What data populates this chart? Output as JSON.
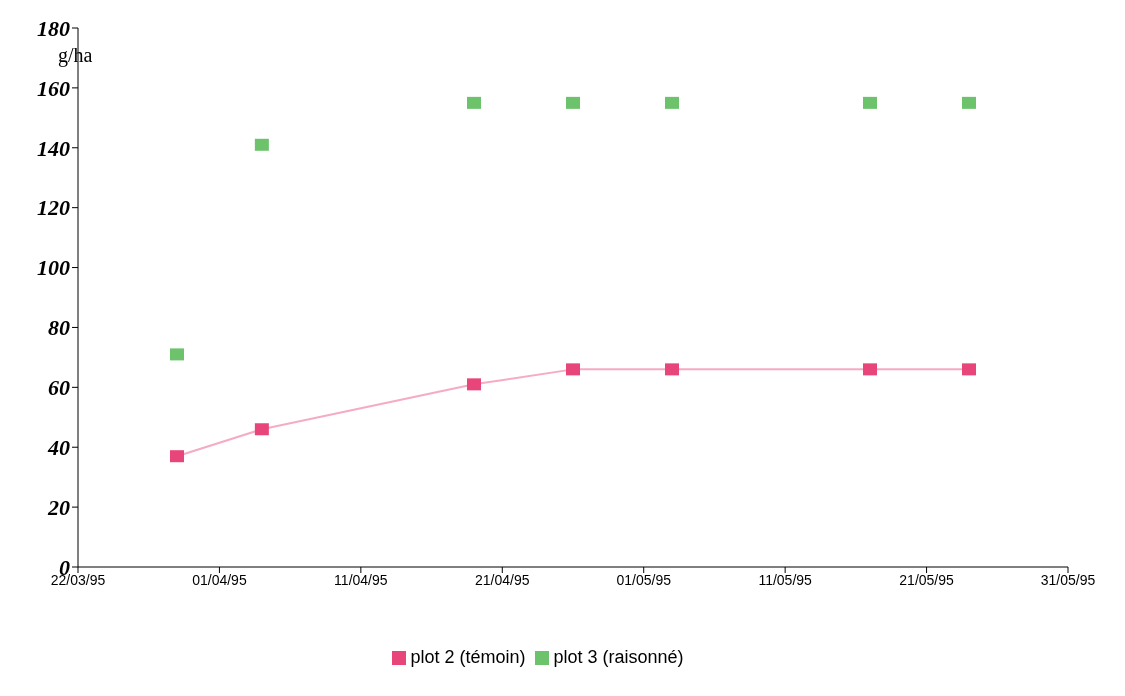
{
  "chart_data": {
    "type": "line",
    "ylabel": "g/ha",
    "x": [
      "1995-03-29",
      "1995-04-04",
      "1995-04-19",
      "1995-04-26",
      "1995-05-03",
      "1995-05-17",
      "1995-05-24"
    ],
    "series": [
      {
        "name": "plot 2 (témoin)",
        "color": "#e8457a",
        "values": [
          37,
          46,
          61,
          66,
          66,
          66,
          66
        ]
      },
      {
        "name": "plot 3 (raisonné)",
        "color": "#6cc36c",
        "type": "scatter",
        "values": [
          71,
          141,
          155,
          155,
          155,
          155,
          155
        ]
      }
    ],
    "xlim": [
      "1995-03-22",
      "1995-05-31"
    ],
    "xticks": [
      {
        "value": "1995-03-22",
        "label": "22/03/95"
      },
      {
        "value": "1995-04-01",
        "label": "01/04/95"
      },
      {
        "value": "1995-04-11",
        "label": "11/04/95"
      },
      {
        "value": "1995-04-21",
        "label": "21/04/95"
      },
      {
        "value": "1995-05-01",
        "label": "01/05/95"
      },
      {
        "value": "1995-05-11",
        "label": "11/05/95"
      },
      {
        "value": "1995-05-21",
        "label": "21/05/95"
      },
      {
        "value": "1995-05-31",
        "label": "31/05/95"
      }
    ],
    "ylim": [
      0,
      180
    ],
    "yticks": [
      0,
      20,
      40,
      60,
      80,
      100,
      120,
      140,
      160,
      180
    ],
    "grid": false,
    "legend": "bottom",
    "marker": "square",
    "line_style": "solid"
  }
}
